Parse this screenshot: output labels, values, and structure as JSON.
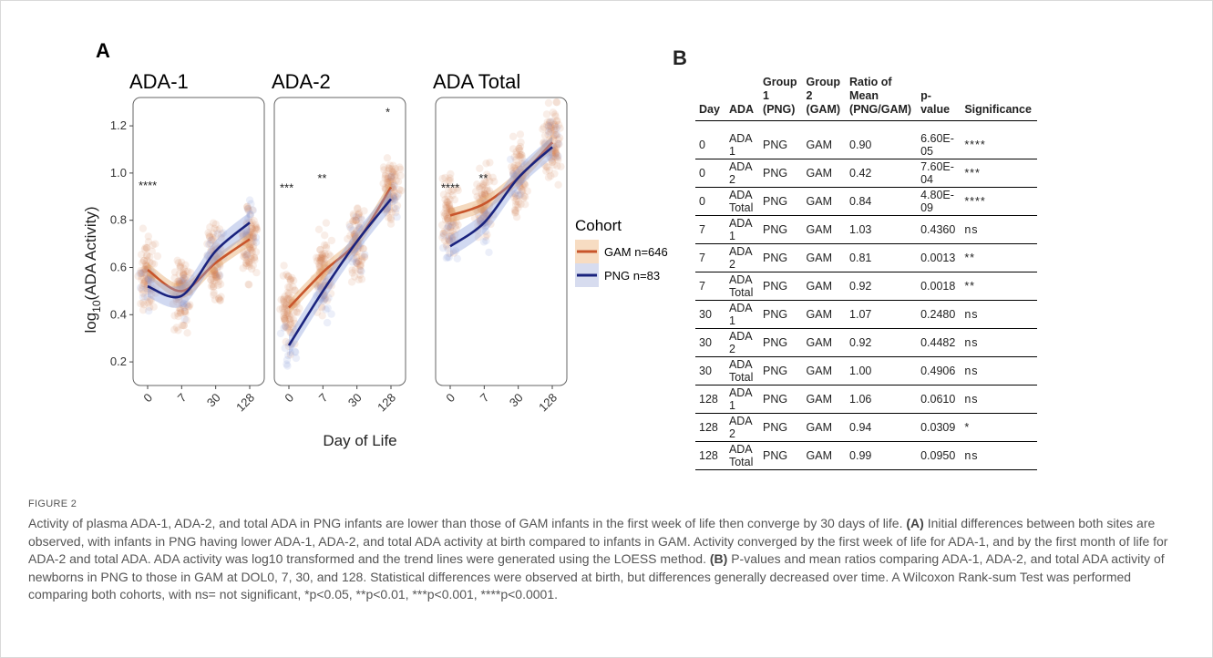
{
  "panel_a": {
    "label": "A",
    "facets": [
      "ADA-1",
      "ADA-2",
      "ADA Total"
    ],
    "ylabel_main": "log",
    "ylabel_sub": "10",
    "ylabel_rest": "(ADA Activity)",
    "xlabel": "Day of Life",
    "legend_title": "Cohort",
    "legend": [
      {
        "label": "GAM n=646",
        "color": "#c8552b"
      },
      {
        "label": "PNG n=83",
        "color": "#1a237e"
      }
    ]
  },
  "chart_data": {
    "type": "scatter",
    "facets": [
      "ADA-1",
      "ADA-2",
      "ADA Total"
    ],
    "x_categories": [
      "0",
      "7",
      "30",
      "128"
    ],
    "yticks": [
      0.2,
      0.4,
      0.6,
      0.8,
      1.0,
      1.2
    ],
    "ylim": [
      0.1,
      1.32
    ],
    "series": [
      {
        "name": "GAM n=646",
        "color": "#c8552b",
        "trend": [
          [
            0.59,
            0.5,
            0.62,
            0.72
          ],
          [
            0.43,
            0.58,
            0.71,
            0.94
          ],
          [
            0.82,
            0.87,
            0.98,
            1.13
          ]
        ]
      },
      {
        "name": "PNG n=83",
        "color": "#1a237e",
        "trend": [
          [
            0.52,
            0.48,
            0.67,
            0.79
          ],
          [
            0.27,
            0.5,
            0.71,
            0.89
          ],
          [
            0.69,
            0.79,
            0.98,
            1.11
          ]
        ]
      }
    ],
    "significance": [
      [
        {
          "x": 0,
          "y": 0.93,
          "label": "****"
        }
      ],
      [
        {
          "x": 0,
          "y": 0.92,
          "label": "***"
        },
        {
          "x": 1,
          "y": 0.96,
          "label": "**"
        },
        {
          "x": 3,
          "y": 1.24,
          "label": "*"
        }
      ],
      [
        {
          "x": 0,
          "y": 0.92,
          "label": "****"
        },
        {
          "x": 1,
          "y": 0.96,
          "label": "**"
        }
      ]
    ],
    "grid": false
  },
  "panel_b": {
    "label": "B",
    "headers": [
      "Day",
      "ADA",
      "Group 1 (PNG)",
      "Group 2 (GAM)",
      "Ratio of Mean (PNG/GAM)",
      "p-value",
      "Significance"
    ],
    "rows": [
      [
        "0",
        "ADA 1",
        "PNG",
        "GAM",
        "0.90",
        "6.60E-05",
        "****"
      ],
      [
        "0",
        "ADA 2",
        "PNG",
        "GAM",
        "0.42",
        "7.60E-04",
        "***"
      ],
      [
        "0",
        "ADA Total",
        "PNG",
        "GAM",
        "0.84",
        "4.80E-09",
        "****"
      ],
      [
        "7",
        "ADA 1",
        "PNG",
        "GAM",
        "1.03",
        "0.4360",
        "ns"
      ],
      [
        "7",
        "ADA 2",
        "PNG",
        "GAM",
        "0.81",
        "0.0013",
        "**"
      ],
      [
        "7",
        "ADA Total",
        "PNG",
        "GAM",
        "0.92",
        "0.0018",
        "**"
      ],
      [
        "30",
        "ADA 1",
        "PNG",
        "GAM",
        "1.07",
        "0.2480",
        "ns"
      ],
      [
        "30",
        "ADA 2",
        "PNG",
        "GAM",
        "0.92",
        "0.4482",
        "ns"
      ],
      [
        "30",
        "ADA Total",
        "PNG",
        "GAM",
        "1.00",
        "0.4906",
        "ns"
      ],
      [
        "128",
        "ADA 1",
        "PNG",
        "GAM",
        "1.06",
        "0.0610",
        "ns"
      ],
      [
        "128",
        "ADA 2",
        "PNG",
        "GAM",
        "0.94",
        "0.0309",
        "*"
      ],
      [
        "128",
        "ADA Total",
        "PNG",
        "GAM",
        "0.99",
        "0.0950",
        "ns"
      ]
    ]
  },
  "caption": {
    "label": "FIGURE 2",
    "p1": "Activity of plasma ADA-1, ADA-2, and total ADA in PNG infants are lower than those of GAM infants in the first week of life then converge by 30 days of life.",
    "a_label": "(A)",
    "p2": "Initial differences between both sites are observed, with infants in PNG having lower ADA-1, ADA-2, and total ADA activity at birth compared to infants in GAM. Activity converged by the first week of life for ADA-1, and by the first month of life for ADA-2 and total ADA. ADA activity was log10 transformed and the trend lines were generated using the LOESS method.",
    "b_label": "(B)",
    "p3": "P-values and mean ratios comparing ADA-1, ADA-2, and total ADA activity of newborns in PNG to those in GAM at DOL0, 7, 30, and 128. Statistical differences were observed at birth, but differences generally decreased over time. A Wilcoxon Rank-sum Test was performed comparing both cohorts, with ns= not significant, *p<0.05, **p<0.01, ***p<0.001, ****p<0.0001."
  }
}
